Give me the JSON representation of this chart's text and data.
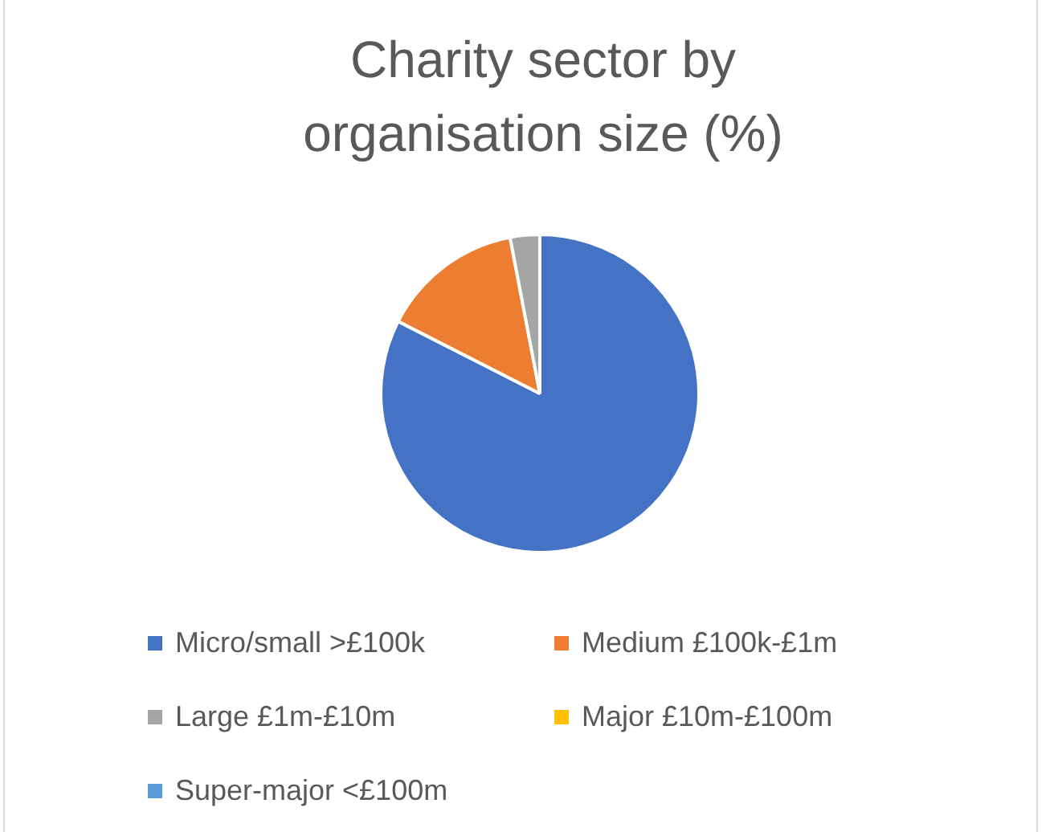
{
  "chart_data": {
    "type": "pie",
    "title": "Charity sector by organisation size (%)",
    "categories": [
      "Micro/small >£100k",
      "Medium £100k-£1m",
      "Large £1m-£10m",
      "Major £10m-£100m",
      "Super-major <£100m"
    ],
    "values": [
      82.5,
      14.5,
      3.0,
      null,
      null
    ],
    "colors": [
      "#4472c4",
      "#ed7d31",
      "#a5a5a5",
      "#ffc000",
      "#5b9bd5"
    ],
    "legend": "bottom"
  }
}
